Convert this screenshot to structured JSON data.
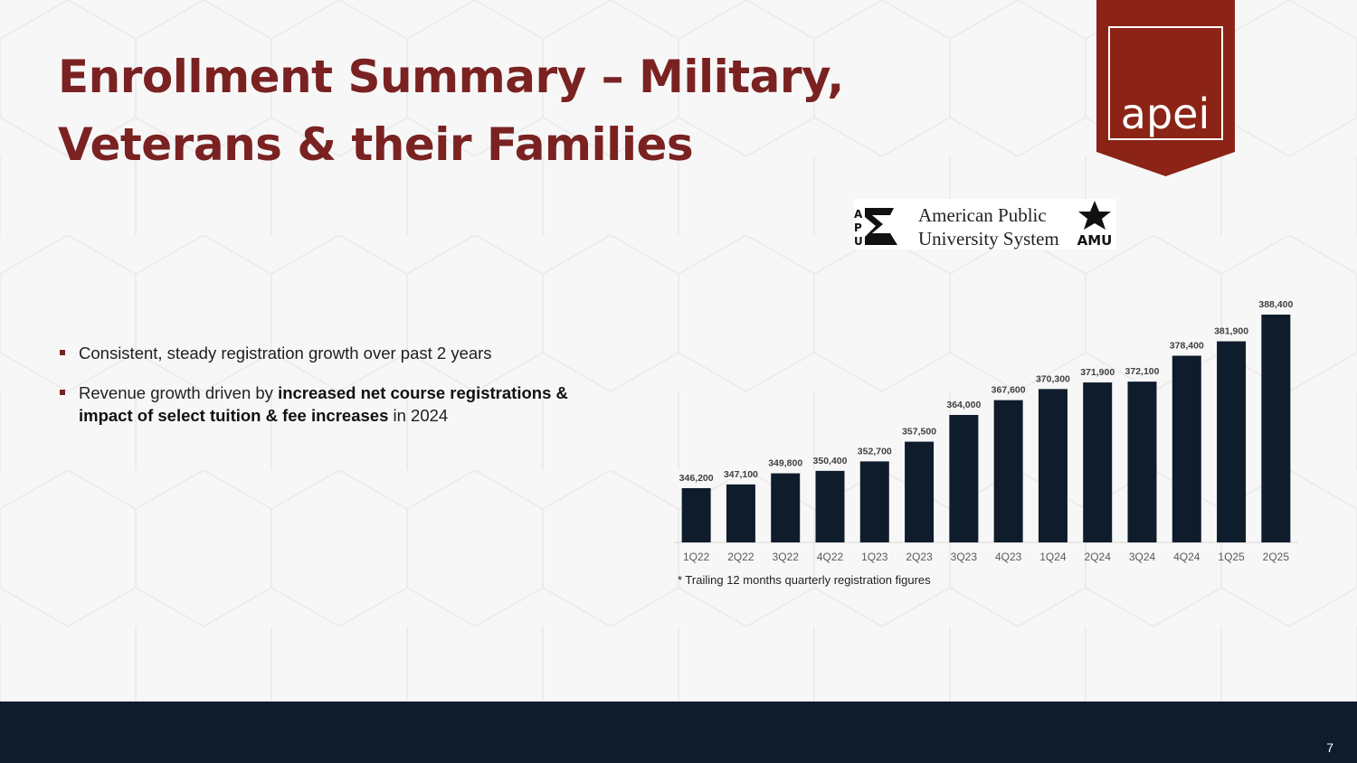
{
  "slide": {
    "title_line1": "Enrollment Summary – Military,",
    "title_line2": "Veterans & their Families",
    "page_number": "7"
  },
  "logos": {
    "apei": "apei",
    "apus_line1": "American Public",
    "apus_line2": "University System",
    "apu_letters": [
      "A",
      "P",
      "U"
    ],
    "amu": "AMU"
  },
  "bullets": [
    {
      "text": "Consistent, steady registration growth over past 2 years"
    },
    {
      "prefix": "Revenue growth driven by ",
      "bold": "increased net course registrations & impact of select tuition & fee increases",
      "suffix": " in 2024"
    }
  ],
  "chart_data": {
    "type": "bar",
    "title": "",
    "xlabel": "",
    "ylabel": "",
    "categories": [
      "1Q22",
      "2Q22",
      "3Q22",
      "4Q22",
      "1Q23",
      "2Q23",
      "3Q23",
      "4Q23",
      "1Q24",
      "2Q24",
      "3Q24",
      "4Q24",
      "1Q25",
      "2Q25"
    ],
    "values": [
      346200,
      347100,
      349800,
      350400,
      352700,
      357500,
      364000,
      367600,
      370300,
      371900,
      372100,
      378400,
      381900,
      388400
    ],
    "labels": [
      "346,200",
      "347,100",
      "349,800",
      "350,400",
      "352,700",
      "357,500",
      "364,000",
      "367,600",
      "370,300",
      "371,900",
      "372,100",
      "378,400",
      "381,900",
      "388,400"
    ],
    "ylim": [
      333000,
      388400
    ],
    "bar_color": "#0f1c2c",
    "note": "* Trailing 12 months quarterly registration figures"
  },
  "colors": {
    "title": "#7a2222",
    "ribbon": "#8b2416",
    "footer": "#0f1c2c"
  }
}
